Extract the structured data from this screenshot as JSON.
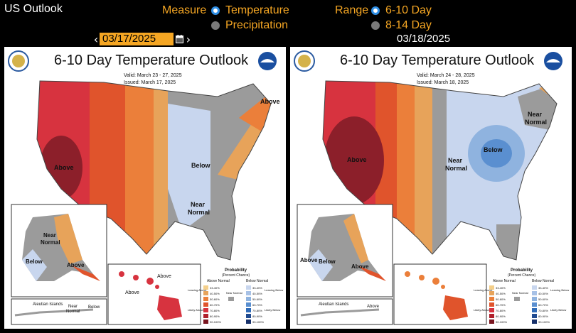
{
  "app": {
    "title": "US Outlook"
  },
  "measure": {
    "label": "Measure",
    "options": [
      {
        "label": "Temperature",
        "selected": true
      },
      {
        "label": "Precipitation",
        "selected": false
      }
    ]
  },
  "range": {
    "label": "Range",
    "options": [
      {
        "label": "6-10 Day",
        "selected": true
      },
      {
        "label": "8-14 Day",
        "selected": false
      }
    ]
  },
  "dates": {
    "left": "03/17/2025",
    "right": "03/18/2025"
  },
  "colors": {
    "accent": "#f5a623",
    "radio_on": "#2f8fe6",
    "radio_off": "#7a7a7a"
  },
  "maps": [
    {
      "title": "6-10 Day Temperature Outlook",
      "valid": "Valid:  March 23 - 27, 2025",
      "issued": "Issued:  March 17, 2025",
      "labels": {
        "above_west": "Above",
        "above_ne": "Above",
        "below": "Below",
        "near": "Near",
        "normal": "Normal",
        "ak_near": "Near",
        "ak_normal": "Normal",
        "ak_below": "Below",
        "ak_above": "Above",
        "hi_above1": "Above",
        "hi_above2": "Above",
        "aleutian": "Aleutian Islands",
        "al_near": "Near",
        "al_normal": "Normal",
        "al_below": "Below"
      }
    },
    {
      "title": "6-10 Day Temperature Outlook",
      "valid": "Valid:  March 24 - 28, 2025",
      "issued": "Issued:  March 18, 2025",
      "labels": {
        "above_west": "Above",
        "near_ne": "Near",
        "normal_ne": "Normal",
        "below": "Below",
        "near": "Near",
        "normal": "Normal",
        "ak_above1": "Above",
        "ak_below": "Below",
        "ak_above2": "Above",
        "aleutian": "Aleutian Islands",
        "al_above": "Above"
      }
    }
  ],
  "legend": {
    "title": "Probability",
    "subtitle": "(Percent Chance)",
    "above_header": "Above Normal",
    "below_header": "Below Normal",
    "near_label": "Near Normal",
    "leaning_above": "Leaning Above",
    "likely_above": "Likely Above",
    "leaning_below": "Leaning Below",
    "likely_below": "Likely Below",
    "ranges": [
      "33-40%",
      "40-50%",
      "50-60%",
      "60-70%",
      "70-80%",
      "80-90%",
      "90-100%"
    ]
  }
}
